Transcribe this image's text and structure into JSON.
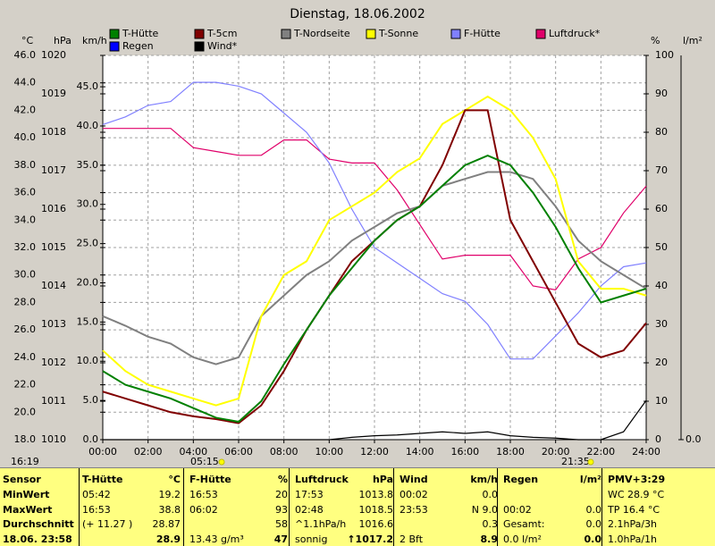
{
  "chart_data": {
    "type": "line",
    "title": "Dienstag, 18.06.2002",
    "x": [
      0,
      1,
      2,
      3,
      4,
      5,
      6,
      7,
      8,
      9,
      10,
      11,
      12,
      13,
      14,
      15,
      16,
      17,
      18,
      19,
      20,
      21,
      22,
      23,
      24
    ],
    "xlim": [
      0,
      24
    ],
    "xticks": [
      {
        "value": 0,
        "label": "00:00"
      },
      {
        "value": 2,
        "label": "02:00"
      },
      {
        "value": 4,
        "label": "04:00"
      },
      {
        "value": 6,
        "label": "06:00"
      },
      {
        "value": 8,
        "label": "08:00"
      },
      {
        "value": 10,
        "label": "10:00"
      },
      {
        "value": 12,
        "label": "12:00"
      },
      {
        "value": 14,
        "label": "14:00"
      },
      {
        "value": 16,
        "label": "16:00"
      },
      {
        "value": 18,
        "label": "18:00"
      },
      {
        "value": 20,
        "label": "20:00"
      },
      {
        "value": 22,
        "label": "22:00"
      },
      {
        "value": 24,
        "label": "24:00"
      }
    ],
    "grid": true,
    "axes": [
      {
        "unit": "°C",
        "lim": [
          18,
          46
        ],
        "ticks": [
          {
            "value": 18,
            "label": "18.0"
          },
          {
            "value": 20,
            "label": "20.0"
          },
          {
            "value": 22,
            "label": "22.0"
          },
          {
            "value": 24,
            "label": "24.0"
          },
          {
            "value": 26,
            "label": "26.0"
          },
          {
            "value": 28,
            "label": "28.0"
          },
          {
            "value": 30,
            "label": "30.0"
          },
          {
            "value": 32,
            "label": "32.0"
          },
          {
            "value": 34,
            "label": "34.0"
          },
          {
            "value": 36,
            "label": "36.0"
          },
          {
            "value": 38,
            "label": "38.0"
          },
          {
            "value": 40,
            "label": "40.0"
          },
          {
            "value": 42,
            "label": "42.0"
          },
          {
            "value": 44,
            "label": "44.0"
          },
          {
            "value": 46,
            "label": "46.0"
          }
        ]
      },
      {
        "unit": "hPa",
        "lim": [
          1010,
          1020
        ],
        "ticks": [
          1010,
          1011,
          1012,
          1013,
          1014,
          1015,
          1016,
          1017,
          1018,
          1019,
          1020
        ]
      },
      {
        "unit": "km/h",
        "lim": [
          0,
          49
        ],
        "ticks": [
          {
            "value": 0,
            "label": "0.0"
          },
          {
            "value": 5,
            "label": "5.0"
          },
          {
            "value": 10,
            "label": "10.0"
          },
          {
            "value": 15,
            "label": "15.0"
          },
          {
            "value": 20,
            "label": "20.0"
          },
          {
            "value": 25,
            "label": "25.0"
          },
          {
            "value": 30,
            "label": "30.0"
          },
          {
            "value": 35,
            "label": "35.0"
          },
          {
            "value": 40,
            "label": "40.0"
          },
          {
            "value": 45,
            "label": "45.0"
          }
        ]
      },
      {
        "unit": "%",
        "lim": [
          0,
          100
        ],
        "ticks": [
          0,
          10,
          20,
          30,
          40,
          50,
          60,
          70,
          80,
          90,
          100
        ]
      },
      {
        "unit": "l/m²",
        "ticks": [
          {
            "value": 0,
            "label": "0.0"
          }
        ]
      }
    ],
    "series": [
      {
        "name": "Luftdruck*",
        "color": "#e0006a",
        "axis": 1,
        "values": [
          1018.1,
          1018.1,
          1018.1,
          1018.1,
          1017.6,
          1017.5,
          1017.4,
          1017.4,
          1017.8,
          1017.8,
          1017.3,
          1017.2,
          1017.2,
          1016.5,
          1015.6,
          1014.7,
          1014.8,
          1014.8,
          1014.8,
          1014.0,
          1013.9,
          1014.7,
          1015.0,
          1015.9,
          1016.6
        ]
      },
      {
        "name": "F-Hütte",
        "color": "#8080ff",
        "axis": 3,
        "values": [
          82,
          84,
          87,
          88,
          93,
          93,
          92,
          90,
          85,
          80,
          72,
          60,
          50,
          46,
          42,
          38,
          36,
          30,
          21,
          21,
          27,
          33,
          40,
          45,
          46
        ]
      },
      {
        "name": "T-Nordseite",
        "color": "#808080",
        "axis": 0,
        "values": [
          27.0,
          26.3,
          25.5,
          25.0,
          24.0,
          23.5,
          24.0,
          27.0,
          28.5,
          30.0,
          31.0,
          32.5,
          33.5,
          34.5,
          35.0,
          36.5,
          37.0,
          37.5,
          37.5,
          37.0,
          35.0,
          32.5,
          31.0,
          30.0,
          29.0
        ]
      },
      {
        "name": "T-Sonne",
        "color": "#ffff00",
        "axis": 0,
        "values": [
          24.5,
          23.0,
          22.0,
          21.5,
          21.0,
          20.5,
          21.0,
          27.0,
          30.0,
          31.0,
          34.0,
          35.0,
          36.0,
          37.5,
          38.5,
          41.0,
          42.0,
          43.0,
          42.0,
          40.0,
          37.0,
          31.0,
          29.0,
          29.0,
          28.5
        ]
      },
      {
        "name": "T-5cm",
        "color": "#800000",
        "axis": 0,
        "values": [
          21.5,
          21.0,
          20.5,
          20.0,
          19.7,
          19.5,
          19.2,
          20.5,
          23.0,
          26.0,
          28.5,
          31.0,
          32.5,
          34.0,
          35.0,
          38.0,
          42.0,
          42.0,
          34.0,
          31.0,
          28.0,
          25.0,
          24.0,
          24.5,
          26.5
        ]
      },
      {
        "name": "T-Hütte",
        "color": "#008000",
        "axis": 0,
        "values": [
          23.0,
          22.0,
          21.5,
          21.0,
          20.3,
          19.6,
          19.3,
          20.8,
          23.5,
          26.0,
          28.5,
          30.5,
          32.5,
          34.0,
          35.0,
          36.5,
          38.0,
          38.7,
          38.0,
          36.0,
          33.5,
          30.5,
          28.0,
          28.5,
          29.0
        ]
      },
      {
        "name": "Wind*",
        "color": "#000000",
        "axis": 2,
        "values": [
          0,
          0,
          0,
          0,
          0,
          0,
          0,
          0,
          0,
          0,
          0,
          0.3,
          0.5,
          0.6,
          0.8,
          1,
          0.8,
          1,
          0.5,
          0.3,
          0.2,
          0,
          0,
          1,
          5
        ]
      },
      {
        "name": "Regen",
        "color": "#0000ff",
        "axis": 4
      }
    ],
    "legend_order": [
      5,
      4,
      2,
      3,
      1,
      0,
      7,
      6
    ]
  },
  "status": {
    "time": "16:19",
    "sunrise": "05:15",
    "sunset": "21:35"
  },
  "summary": {
    "columns": [
      {
        "title": "Sensor"
      },
      {
        "title": "T-Hütte",
        "unit": "°C"
      },
      {
        "title": "F-Hütte",
        "unit": "%"
      },
      {
        "title": "Luftdruck",
        "unit": "hPa"
      },
      {
        "title": "Wind",
        "unit": "km/h"
      },
      {
        "title": "Regen",
        "unit": "l/m²"
      },
      {
        "title": "PMV+3:29"
      }
    ],
    "rows": [
      {
        "label": "MinWert",
        "cells": [
          [
            "05:42",
            "19.2"
          ],
          [
            "16:53",
            "20"
          ],
          [
            "17:53",
            "1013.8"
          ],
          [
            "00:02",
            "0.0"
          ],
          [
            null,
            null
          ]
        ],
        "extra": "WC 28.9 °C"
      },
      {
        "label": "MaxWert",
        "cells": [
          [
            "16:53",
            "38.8"
          ],
          [
            "06:02",
            "93"
          ],
          [
            "02:48",
            "1018.5"
          ],
          [
            "23:53",
            "N 9.0"
          ],
          [
            "00:02",
            "0.0"
          ]
        ],
        "extra": "TP 16.4 °C"
      },
      {
        "label": "Durchschnitt",
        "cells": [
          [
            "(+ 11.27 )",
            "28.87"
          ],
          [
            null,
            "58"
          ],
          [
            "^1.1hPa/h",
            "1016.6"
          ],
          [
            null,
            "0.3"
          ],
          [
            "Gesamt:",
            "0.0"
          ]
        ],
        "extra": "2.1hPa/3h"
      },
      {
        "label": "18.06. 23:58",
        "cells": [
          [
            null,
            "28.9"
          ],
          [
            "13.43 g/m³",
            "47"
          ],
          [
            "sonnig",
            "↑1017.2"
          ],
          [
            "2 Bft",
            "8.9"
          ],
          [
            "0.0 l/m²",
            "0.0"
          ]
        ],
        "extra": "1.0hPa/1h"
      }
    ]
  }
}
